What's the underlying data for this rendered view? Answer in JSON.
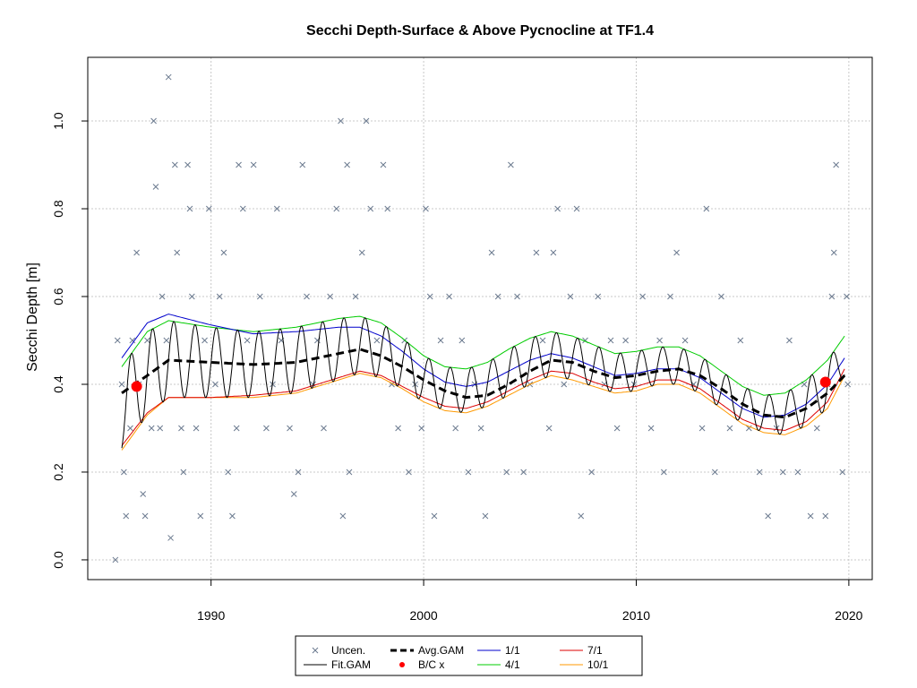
{
  "chart_data": {
    "type": "line",
    "title": "Secchi Depth-Surface & Above Pycnocline at TF1.4",
    "xlabel": "",
    "ylabel": "Secchi Depth [m]",
    "xlim": [
      1984.2,
      2021.1
    ],
    "ylim": [
      -0.045,
      1.145
    ],
    "x_ticks": [
      1990,
      2000,
      2010,
      2020
    ],
    "y_ticks": [
      0.0,
      0.2,
      0.4,
      0.6,
      0.8,
      1.0
    ],
    "y_tick_labels": [
      "0.0",
      "0.2",
      "0.4",
      "0.6",
      "0.8",
      "1.0"
    ],
    "grid": true,
    "legend_position": "bottom-center",
    "legend": [
      {
        "label": "Uncen.",
        "kind": "cross",
        "color": "#6b7a8f"
      },
      {
        "label": "Fit.GAM",
        "kind": "line",
        "color": "#000000"
      },
      {
        "label": "Avg.GAM",
        "kind": "dashed",
        "color": "#000000"
      },
      {
        "label": "B/C x",
        "kind": "dot",
        "color": "#ff0000"
      },
      {
        "label": "1/1",
        "kind": "line",
        "color": "#0000cc"
      },
      {
        "label": "4/1",
        "kind": "line",
        "color": "#00cc00"
      },
      {
        "label": "7/1",
        "kind": "line",
        "color": "#dd0000"
      },
      {
        "label": "10/1",
        "kind": "line",
        "color": "#ff9900"
      }
    ],
    "series": [
      {
        "name": "Avg.GAM",
        "x": [
          1985.8,
          1987,
          1988,
          1990,
          1992,
          1994,
          1996,
          1997,
          1998,
          1999,
          2000,
          2001,
          2002,
          2003,
          2004,
          2005,
          2006,
          2007,
          2008,
          2009,
          2010,
          2011,
          2012,
          2013,
          2014,
          2015,
          2016,
          2017,
          2018,
          2019,
          2019.8
        ],
        "y": [
          0.38,
          0.42,
          0.455,
          0.45,
          0.445,
          0.45,
          0.47,
          0.48,
          0.465,
          0.44,
          0.41,
          0.385,
          0.37,
          0.375,
          0.4,
          0.43,
          0.455,
          0.45,
          0.43,
          0.415,
          0.42,
          0.43,
          0.435,
          0.42,
          0.39,
          0.355,
          0.33,
          0.325,
          0.345,
          0.38,
          0.42
        ]
      },
      {
        "name": "1/1",
        "x": [
          1985.8,
          1987,
          1988,
          1990,
          1992,
          1994,
          1996,
          1997,
          1998,
          1999,
          2000,
          2001,
          2002,
          2003,
          2004,
          2005,
          2006,
          2007,
          2008,
          2009,
          2010,
          2011,
          2012,
          2013,
          2014,
          2015,
          2016,
          2017,
          2018,
          2019,
          2019.8
        ],
        "y": [
          0.46,
          0.54,
          0.56,
          0.535,
          0.515,
          0.52,
          0.53,
          0.53,
          0.51,
          0.475,
          0.435,
          0.405,
          0.395,
          0.405,
          0.43,
          0.455,
          0.47,
          0.46,
          0.44,
          0.42,
          0.425,
          0.435,
          0.435,
          0.415,
          0.38,
          0.345,
          0.325,
          0.33,
          0.355,
          0.4,
          0.46
        ]
      },
      {
        "name": "4/1",
        "x": [
          1985.8,
          1987,
          1988,
          1990,
          1992,
          1994,
          1996,
          1997,
          1998,
          1999,
          2000,
          2001,
          2002,
          2003,
          2004,
          2005,
          2006,
          2007,
          2008,
          2009,
          2010,
          2011,
          2012,
          2013,
          2014,
          2015,
          2016,
          2017,
          2018,
          2019,
          2019.8
        ],
        "y": [
          0.44,
          0.52,
          0.545,
          0.53,
          0.52,
          0.53,
          0.55,
          0.555,
          0.54,
          0.505,
          0.465,
          0.44,
          0.435,
          0.45,
          0.48,
          0.505,
          0.52,
          0.51,
          0.49,
          0.47,
          0.475,
          0.485,
          0.485,
          0.465,
          0.43,
          0.395,
          0.375,
          0.38,
          0.41,
          0.455,
          0.51
        ]
      },
      {
        "name": "7/1",
        "x": [
          1985.8,
          1987,
          1988,
          1990,
          1992,
          1994,
          1996,
          1997,
          1998,
          1999,
          2000,
          2001,
          2002,
          2003,
          2004,
          2005,
          2006,
          2007,
          2008,
          2009,
          2010,
          2011,
          2012,
          2013,
          2014,
          2015,
          2016,
          2017,
          2018,
          2019,
          2019.8
        ],
        "y": [
          0.26,
          0.335,
          0.37,
          0.37,
          0.375,
          0.385,
          0.415,
          0.43,
          0.42,
          0.395,
          0.37,
          0.35,
          0.345,
          0.36,
          0.385,
          0.41,
          0.43,
          0.425,
          0.405,
          0.39,
          0.395,
          0.41,
          0.41,
          0.39,
          0.355,
          0.32,
          0.3,
          0.295,
          0.315,
          0.36,
          0.435
        ]
      },
      {
        "name": "10/1",
        "x": [
          1985.8,
          1987,
          1988,
          1990,
          1992,
          1994,
          1996,
          1997,
          1998,
          1999,
          2000,
          2001,
          2002,
          2003,
          2004,
          2005,
          2006,
          2007,
          2008,
          2009,
          2010,
          2011,
          2012,
          2013,
          2014,
          2015,
          2016,
          2017,
          2018,
          2019,
          2019.8
        ],
        "y": [
          0.25,
          0.33,
          0.37,
          0.37,
          0.37,
          0.38,
          0.41,
          0.425,
          0.415,
          0.39,
          0.36,
          0.34,
          0.335,
          0.35,
          0.375,
          0.4,
          0.42,
          0.41,
          0.395,
          0.38,
          0.385,
          0.4,
          0.4,
          0.38,
          0.345,
          0.31,
          0.29,
          0.285,
          0.305,
          0.345,
          0.42
        ]
      }
    ],
    "fit_gam_note_x_range": [
      1985.8,
      2019.8
    ],
    "bc_points": [
      {
        "x": 1986.5,
        "y": 0.395
      },
      {
        "x": 2018.9,
        "y": 0.405
      }
    ],
    "uncen_points": [
      [
        1985.5,
        0.0
      ],
      [
        1985.6,
        0.5
      ],
      [
        1985.8,
        0.4
      ],
      [
        1985.9,
        0.2
      ],
      [
        1986.0,
        0.1
      ],
      [
        1986.2,
        0.3
      ],
      [
        1986.3,
        0.5
      ],
      [
        1986.5,
        0.7
      ],
      [
        1986.6,
        0.4
      ],
      [
        1986.8,
        0.15
      ],
      [
        1986.9,
        0.1
      ],
      [
        1987.0,
        0.5
      ],
      [
        1987.2,
        0.3
      ],
      [
        1987.3,
        1.0
      ],
      [
        1987.4,
        0.85
      ],
      [
        1987.6,
        0.3
      ],
      [
        1987.7,
        0.6
      ],
      [
        1987.9,
        0.5
      ],
      [
        1988.0,
        1.1
      ],
      [
        1988.1,
        0.05
      ],
      [
        1988.3,
        0.9
      ],
      [
        1988.4,
        0.7
      ],
      [
        1988.6,
        0.3
      ],
      [
        1988.7,
        0.2
      ],
      [
        1988.9,
        0.9
      ],
      [
        1989.0,
        0.8
      ],
      [
        1989.1,
        0.6
      ],
      [
        1989.3,
        0.3
      ],
      [
        1989.5,
        0.1
      ],
      [
        1989.7,
        0.5
      ],
      [
        1989.9,
        0.8
      ],
      [
        1990.2,
        0.4
      ],
      [
        1990.4,
        0.6
      ],
      [
        1990.6,
        0.7
      ],
      [
        1990.8,
        0.2
      ],
      [
        1991.0,
        0.1
      ],
      [
        1991.2,
        0.3
      ],
      [
        1991.3,
        0.9
      ],
      [
        1991.5,
        0.8
      ],
      [
        1991.7,
        0.5
      ],
      [
        1992.0,
        0.9
      ],
      [
        1992.3,
        0.6
      ],
      [
        1992.6,
        0.3
      ],
      [
        1992.9,
        0.4
      ],
      [
        1993.1,
        0.8
      ],
      [
        1993.3,
        0.5
      ],
      [
        1993.7,
        0.3
      ],
      [
        1993.9,
        0.15
      ],
      [
        1994.1,
        0.2
      ],
      [
        1994.3,
        0.9
      ],
      [
        1994.5,
        0.6
      ],
      [
        1994.8,
        0.4
      ],
      [
        1995.0,
        0.5
      ],
      [
        1995.3,
        0.3
      ],
      [
        1995.6,
        0.6
      ],
      [
        1995.9,
        0.8
      ],
      [
        1996.1,
        1.0
      ],
      [
        1996.2,
        0.1
      ],
      [
        1996.4,
        0.9
      ],
      [
        1996.5,
        0.2
      ],
      [
        1996.8,
        0.6
      ],
      [
        1997.1,
        0.7
      ],
      [
        1997.3,
        1.0
      ],
      [
        1997.5,
        0.8
      ],
      [
        1997.8,
        0.5
      ],
      [
        1998.1,
        0.9
      ],
      [
        1998.3,
        0.8
      ],
      [
        1998.5,
        0.4
      ],
      [
        1998.8,
        0.3
      ],
      [
        1999.1,
        0.5
      ],
      [
        1999.3,
        0.2
      ],
      [
        1999.6,
        0.4
      ],
      [
        1999.9,
        0.3
      ],
      [
        2000.1,
        0.8
      ],
      [
        2000.3,
        0.6
      ],
      [
        2000.5,
        0.1
      ],
      [
        2000.8,
        0.5
      ],
      [
        2001.2,
        0.6
      ],
      [
        2001.5,
        0.3
      ],
      [
        2001.8,
        0.5
      ],
      [
        2002.1,
        0.2
      ],
      [
        2002.4,
        0.4
      ],
      [
        2002.7,
        0.3
      ],
      [
        2002.9,
        0.1
      ],
      [
        2003.2,
        0.7
      ],
      [
        2003.5,
        0.6
      ],
      [
        2003.9,
        0.2
      ],
      [
        2004.1,
        0.9
      ],
      [
        2004.4,
        0.6
      ],
      [
        2004.7,
        0.2
      ],
      [
        2005.0,
        0.4
      ],
      [
        2005.3,
        0.7
      ],
      [
        2005.6,
        0.5
      ],
      [
        2005.9,
        0.3
      ],
      [
        2006.1,
        0.7
      ],
      [
        2006.3,
        0.8
      ],
      [
        2006.6,
        0.4
      ],
      [
        2006.9,
        0.6
      ],
      [
        2007.2,
        0.8
      ],
      [
        2007.4,
        0.1
      ],
      [
        2007.6,
        0.5
      ],
      [
        2007.9,
        0.2
      ],
      [
        2008.2,
        0.6
      ],
      [
        2008.5,
        0.4
      ],
      [
        2008.8,
        0.5
      ],
      [
        2009.1,
        0.3
      ],
      [
        2009.5,
        0.5
      ],
      [
        2009.9,
        0.4
      ],
      [
        2010.3,
        0.6
      ],
      [
        2010.7,
        0.3
      ],
      [
        2011.1,
        0.5
      ],
      [
        2011.3,
        0.2
      ],
      [
        2011.6,
        0.6
      ],
      [
        2011.9,
        0.7
      ],
      [
        2012.3,
        0.5
      ],
      [
        2012.7,
        0.4
      ],
      [
        2013.1,
        0.3
      ],
      [
        2013.3,
        0.8
      ],
      [
        2013.7,
        0.2
      ],
      [
        2014.0,
        0.6
      ],
      [
        2014.4,
        0.3
      ],
      [
        2014.9,
        0.5
      ],
      [
        2015.3,
        0.3
      ],
      [
        2015.8,
        0.2
      ],
      [
        2016.2,
        0.1
      ],
      [
        2016.6,
        0.3
      ],
      [
        2016.9,
        0.2
      ],
      [
        2017.2,
        0.5
      ],
      [
        2017.6,
        0.2
      ],
      [
        2017.9,
        0.4
      ],
      [
        2018.2,
        0.1
      ],
      [
        2018.5,
        0.3
      ],
      [
        2018.9,
        0.1
      ],
      [
        2019.0,
        0.4
      ],
      [
        2019.2,
        0.6
      ],
      [
        2019.3,
        0.7
      ],
      [
        2019.4,
        0.9
      ],
      [
        2019.7,
        0.2
      ],
      [
        2019.9,
        0.6
      ],
      [
        2019.95,
        0.4
      ]
    ]
  }
}
